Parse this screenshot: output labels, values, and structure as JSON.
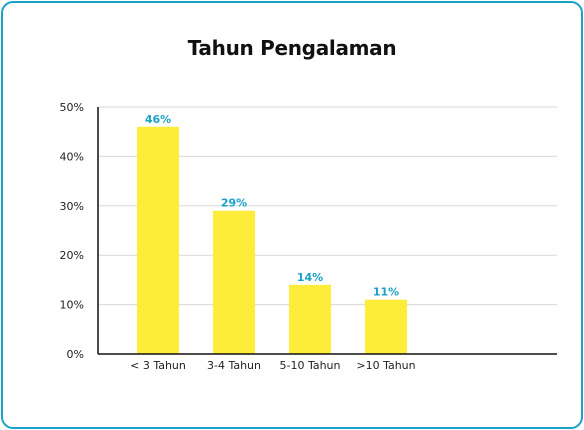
{
  "chart_data": {
    "type": "bar",
    "title": "Tahun Pengalaman",
    "xlabel": "",
    "ylabel": "",
    "categories": [
      "< 3 Tahun",
      "3-4 Tahun",
      "5-10 Tahun",
      ">10 Tahun"
    ],
    "values": [
      46,
      29,
      14,
      11
    ],
    "data_labels": [
      "46%",
      "29%",
      "14%",
      "11%"
    ],
    "yticks": [
      "0%",
      "10%",
      "20%",
      "30%",
      "40%",
      "50%"
    ],
    "ylim": [
      0,
      50
    ],
    "grid": true,
    "legend": "none",
    "bar_color": "#fdec3a",
    "label_color": "#1aa1c9",
    "border_color": "#1aa1c9"
  }
}
